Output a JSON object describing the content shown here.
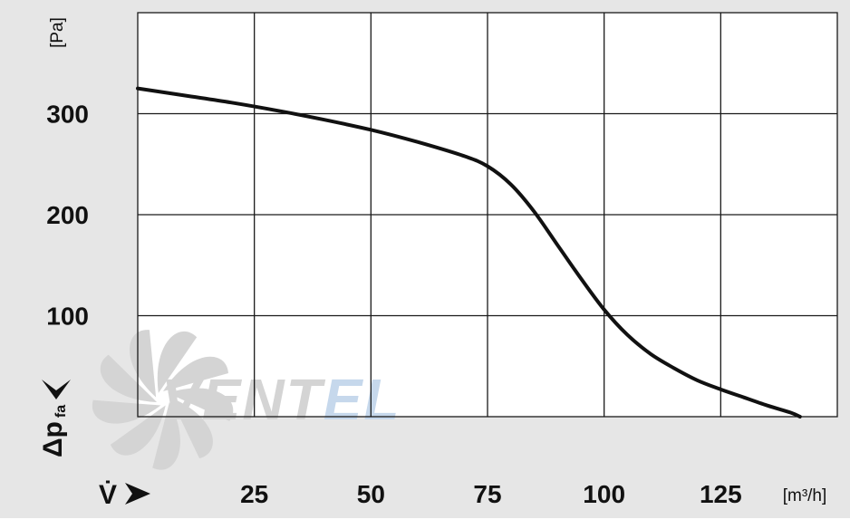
{
  "colors": {
    "panel": "#e6e6e6",
    "plot_background": "#ffffff",
    "grid": "#1a1a1a",
    "curve": "#111111",
    "watermark_gray": "#d4d4d4",
    "watermark_blue": "#c6d8ec"
  },
  "watermark": {
    "text_main": "VENT",
    "text_accent": "EL"
  },
  "chart_data": {
    "type": "line",
    "title": "",
    "xlabel": "V̇",
    "xunit": "[m³/h]",
    "ylabel": "Δp",
    "ylabel_sub": "fa",
    "yunit": "[Pa]",
    "xlim": [
      0,
      150
    ],
    "ylim": [
      0,
      400
    ],
    "x_ticks": [
      25,
      50,
      75,
      100,
      125
    ],
    "x_tick_labels": [
      "25",
      "50",
      "75",
      "100",
      "125"
    ],
    "y_ticks": [
      100,
      200,
      300
    ],
    "y_tick_labels": [
      "100",
      "200",
      "300"
    ],
    "grid": true,
    "series": [
      {
        "x": [
          0,
          10,
          20,
          30,
          40,
          50,
          60,
          70,
          75,
          80,
          85,
          90,
          95,
          100,
          105,
          110,
          115,
          120,
          125,
          130,
          135,
          140,
          142
        ],
        "y": [
          325,
          318,
          311,
          303,
          294,
          284,
          272,
          258,
          248,
          230,
          203,
          170,
          137,
          106,
          81,
          62,
          48,
          36,
          27,
          19,
          11,
          4,
          0
        ]
      }
    ]
  }
}
